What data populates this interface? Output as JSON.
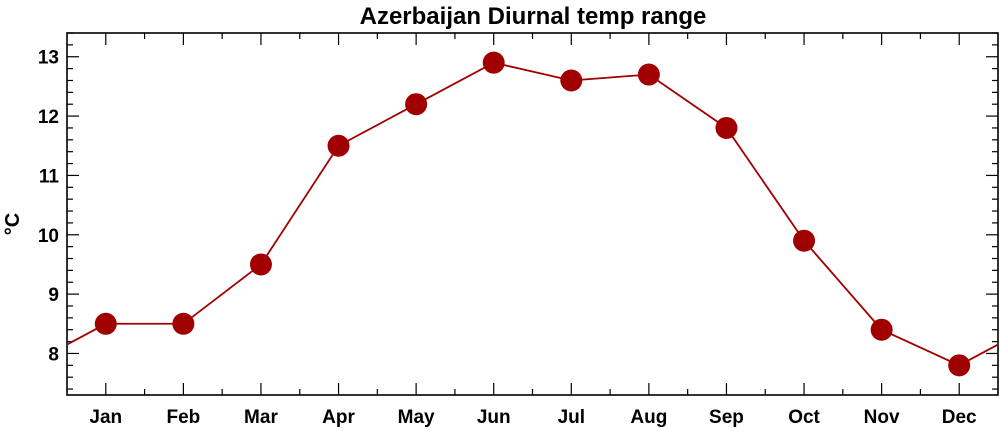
{
  "chart_data": {
    "type": "line",
    "title": "Azerbaijan Diurnal temp range",
    "ylabel": "°C",
    "xlabel": "",
    "categories": [
      "Jan",
      "Feb",
      "Mar",
      "Apr",
      "May",
      "Jun",
      "Jul",
      "Aug",
      "Sep",
      "Oct",
      "Nov",
      "Dec"
    ],
    "series": [
      {
        "values": [
          8.5,
          8.5,
          9.5,
          11.5,
          12.2,
          12.9,
          12.6,
          12.7,
          11.8,
          9.9,
          8.4,
          7.8
        ]
      }
    ],
    "yticks": [
      8,
      9,
      10,
      11,
      12,
      13
    ],
    "ylim": [
      7.3,
      13.4
    ],
    "line_wraps_around_year": true,
    "grid": false,
    "colors": {
      "series": "#a00000",
      "line": "#a00000",
      "frame": "#000000"
    }
  }
}
